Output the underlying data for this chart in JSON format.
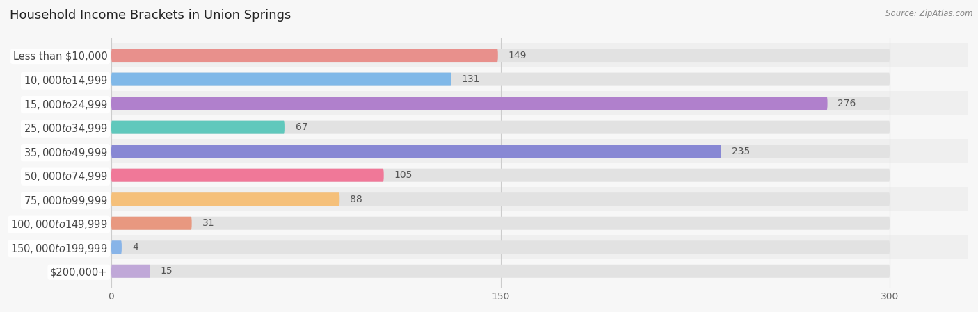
{
  "title": "Household Income Brackets in Union Springs",
  "source": "Source: ZipAtlas.com",
  "categories": [
    "Less than $10,000",
    "$10,000 to $14,999",
    "$15,000 to $24,999",
    "$25,000 to $34,999",
    "$35,000 to $49,999",
    "$50,000 to $74,999",
    "$75,000 to $99,999",
    "$100,000 to $149,999",
    "$150,000 to $199,999",
    "$200,000+"
  ],
  "values": [
    149,
    131,
    276,
    67,
    235,
    105,
    88,
    31,
    4,
    15
  ],
  "bar_colors": [
    "#E8908C",
    "#80B8E8",
    "#B080CC",
    "#60C8BC",
    "#8888D4",
    "#F07898",
    "#F5C07A",
    "#E89880",
    "#88B4E8",
    "#C0A8D8"
  ],
  "background_color": "#f7f7f7",
  "bar_bg_color": "#e2e2e2",
  "bar_row_bg_even": "#efefef",
  "bar_row_bg_odd": "#f7f7f7",
  "xlim": [
    0,
    300
  ],
  "xticks": [
    0,
    150,
    300
  ],
  "title_fontsize": 13,
  "label_fontsize": 10.5,
  "value_fontsize": 10,
  "bar_height": 0.55,
  "label_pill_color": "white",
  "value_color_inside": "white",
  "value_color_outside": "#555555"
}
